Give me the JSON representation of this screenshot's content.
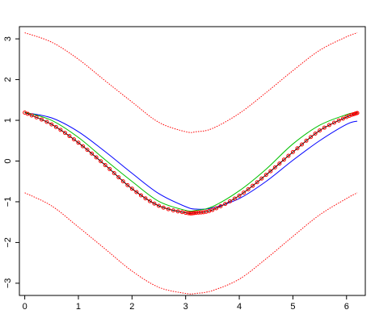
{
  "chart_data": {
    "type": "line",
    "title": "",
    "xlabel": "",
    "ylabel": "",
    "xlim": [
      -0.1,
      6.35
    ],
    "ylim": [
      -3.3,
      3.3
    ],
    "grid": false,
    "legend": "none",
    "x_ticks": [
      0,
      1,
      2,
      3,
      4,
      5,
      6
    ],
    "x_tick_labels": [
      "0",
      "1",
      "2",
      "3",
      "4",
      "5",
      "6"
    ],
    "y_ticks": [
      -3,
      -2,
      -1,
      0,
      1,
      2,
      3
    ],
    "y_tick_labels": [
      "−3",
      "−2",
      "−1",
      "0",
      "1",
      "2",
      "3"
    ],
    "x": [
      0,
      0.5,
      1,
      1.5,
      2,
      2.5,
      3,
      3.2,
      3.5,
      4,
      4.5,
      5,
      5.5,
      6,
      6.2
    ],
    "series": [
      {
        "color": "#0000ff",
        "style": "solid",
        "marker": "none",
        "values": [
          1.19,
          1.06,
          0.72,
          0.23,
          -0.3,
          -0.8,
          -1.12,
          -1.18,
          -1.15,
          -0.92,
          -0.5,
          0.02,
          0.5,
          0.9,
          0.98
        ]
      },
      {
        "color": "#00c000",
        "style": "solid",
        "marker": "none",
        "values": [
          1.2,
          1.0,
          0.58,
          0.03,
          -0.5,
          -0.99,
          -1.21,
          -1.21,
          -1.12,
          -0.73,
          -0.2,
          0.42,
          0.88,
          1.14,
          1.2
        ]
      },
      {
        "color": "#000000",
        "style": "solid",
        "marker": "none",
        "values": [
          1.19,
          0.9,
          0.45,
          -0.1,
          -0.68,
          -1.1,
          -1.27,
          -1.27,
          -1.2,
          -0.85,
          -0.34,
          0.22,
          0.75,
          1.08,
          1.18
        ]
      },
      {
        "color": "#ff0000",
        "style": "points",
        "marker": "circle",
        "values": [
          1.19,
          0.9,
          0.45,
          -0.1,
          -0.68,
          -1.1,
          -1.27,
          -1.27,
          -1.2,
          -0.85,
          -0.34,
          0.22,
          0.75,
          1.08,
          1.18
        ]
      },
      {
        "color": "#ff0000",
        "style": "dotted",
        "marker": "none",
        "values": [
          3.15,
          2.92,
          2.5,
          1.97,
          1.45,
          0.95,
          0.72,
          0.72,
          0.8,
          1.17,
          1.68,
          2.22,
          2.72,
          3.05,
          3.15
        ]
      },
      {
        "color": "#ff0000",
        "style": "dotted",
        "marker": "none",
        "values": [
          -0.78,
          -1.1,
          -1.62,
          -2.16,
          -2.7,
          -3.1,
          -3.25,
          -3.25,
          -3.18,
          -2.9,
          -2.4,
          -1.85,
          -1.32,
          -0.92,
          -0.78
        ]
      }
    ]
  }
}
